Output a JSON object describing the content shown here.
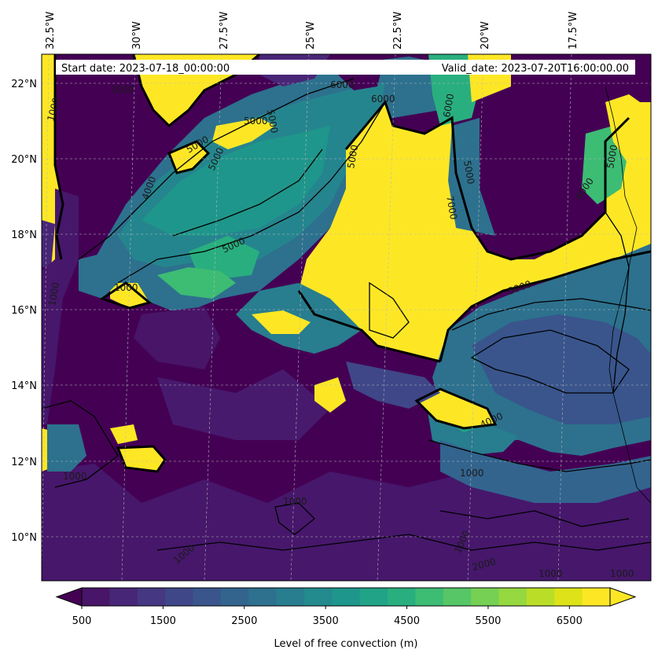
{
  "map": {
    "start_label": "Start date: 2023-07-18_00:00:00",
    "valid_label": "Valid_date: 2023-07-20T16:00:00.00",
    "lon_ticks": [
      "32.5°W",
      "30°W",
      "27.5°W",
      "25°W",
      "22.5°W",
      "20°W",
      "17.5°W"
    ],
    "lat_ticks": [
      "22°N",
      "20°N",
      "18°N",
      "16°N",
      "14°N",
      "12°N",
      "10°N"
    ],
    "contour_labels": [
      "1000",
      "5000",
      "1000",
      "5000",
      "4000",
      "5000",
      "5000",
      "6000",
      "6000",
      "5000",
      "6000",
      "5000",
      "7000",
      "6000",
      "5000",
      "1000",
      "5000",
      "5000",
      "4000",
      "1000",
      "1000",
      "1000",
      "1000",
      "2000",
      "1000",
      "1000",
      "1000",
      "1000"
    ]
  },
  "colorbar": {
    "label": "Level of free convection (m)",
    "tick_labels": [
      "500",
      "1500",
      "2500",
      "3500",
      "4500",
      "5500",
      "6500"
    ],
    "levels": [
      500,
      1000,
      1500,
      2000,
      2500,
      3000,
      3500,
      4000,
      4500,
      5000,
      5500,
      6000,
      6500,
      7000
    ],
    "colors": [
      "#481568",
      "#482677",
      "#453781",
      "#3f4788",
      "#39558c",
      "#32648e",
      "#2d718e",
      "#287d8e",
      "#238a8d",
      "#1f968b",
      "#20a386",
      "#29af7f",
      "#3dbc74",
      "#56c667",
      "#75d054",
      "#95d840",
      "#bade28",
      "#dde318",
      "#fde725"
    ],
    "under_color": "#440154",
    "over_color": "#fde725"
  }
}
